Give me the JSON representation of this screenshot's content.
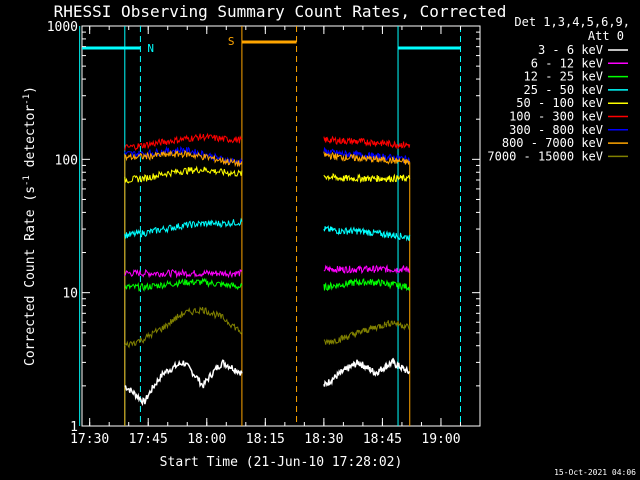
{
  "chart_data": {
    "type": "line",
    "title": "RHESSI Observing Summary Count Rates, Corrected",
    "xlabel": "Start Time (21-Jun-10 17:28:02)",
    "ylabel": "Corrected Count Rate (s⁻¹ detector⁻¹)",
    "ylabel_main": "Corrected Count Rate (s",
    "ylabel_sup1": "-1",
    "ylabel_mid": " detector",
    "ylabel_sup2": "-1",
    "ylabel_end": ")",
    "y_scale": "log",
    "ylim": [
      1,
      1000
    ],
    "xlim": [
      "17:28:02",
      "19:10:00"
    ],
    "x_ticks": [
      "17:30",
      "17:45",
      "18:00",
      "18:15",
      "18:30",
      "18:45",
      "19:00"
    ],
    "y_ticks": [
      "1",
      "10",
      "100",
      "1000"
    ],
    "legend": {
      "title_line1": "Det 1,3,4,5,6,9,",
      "title_line2": "Att 0",
      "placement": "right"
    },
    "series": [
      {
        "name": "3 - 6 keV",
        "color": "#ffffff",
        "segments": [
          {
            "start": "17:39",
            "end": "18:09",
            "values": [
              2,
              1.5,
              2.5,
              3,
              2,
              3,
              2.5
            ]
          },
          {
            "start": "18:30",
            "end": "18:52",
            "values": [
              2,
              2.5,
              3,
              2.5,
              3,
              2.5
            ]
          }
        ]
      },
      {
        "name": "6 - 12 keV",
        "color": "#ff00ff",
        "segments": [
          {
            "start": "17:39",
            "end": "18:09",
            "values": [
              14,
              14,
              14,
              14,
              14,
              14,
              14
            ]
          },
          {
            "start": "18:30",
            "end": "18:52",
            "values": [
              15,
              15,
              15,
              15,
              15,
              15
            ]
          }
        ]
      },
      {
        "name": "12 - 25 keV",
        "color": "#00ff00",
        "segments": [
          {
            "start": "17:39",
            "end": "18:09",
            "values": [
              11,
              11,
              11.5,
              12,
              12,
              11.5,
              11
            ]
          },
          {
            "start": "18:30",
            "end": "18:52",
            "values": [
              11,
              11.5,
              12,
              12,
              11.5,
              11
            ]
          }
        ]
      },
      {
        "name": "25 - 50 keV",
        "color": "#00ffff",
        "segments": [
          {
            "start": "17:39",
            "end": "18:09",
            "values": [
              27,
              28,
              30,
              32,
              33,
              33,
              34
            ]
          },
          {
            "start": "18:30",
            "end": "18:52",
            "values": [
              30,
              29,
              29,
              28,
              27,
              26
            ]
          }
        ]
      },
      {
        "name": "50 - 100 keV",
        "color": "#ffff00",
        "segments": [
          {
            "start": "17:39",
            "end": "18:09",
            "values": [
              70,
              72,
              78,
              82,
              84,
              80,
              78
            ]
          },
          {
            "start": "18:30",
            "end": "18:52",
            "values": [
              75,
              72,
              72,
              72,
              72,
              72
            ]
          }
        ]
      },
      {
        "name": "100 - 300 keV",
        "color": "#ff0000",
        "segments": [
          {
            "start": "17:39",
            "end": "18:09",
            "values": [
              122,
              128,
              135,
              142,
              148,
              142,
              140
            ]
          },
          {
            "start": "18:30",
            "end": "18:52",
            "values": [
              140,
              138,
              136,
              134,
              130,
              128
            ]
          }
        ]
      },
      {
        "name": "300 - 800 keV",
        "color": "#0000ff",
        "segments": [
          {
            "start": "17:39",
            "end": "18:09",
            "values": [
              110,
              110,
              115,
              118,
              110,
              100,
              95
            ]
          },
          {
            "start": "18:30",
            "end": "18:52",
            "values": [
              115,
              110,
              108,
              105,
              103,
              100
            ]
          }
        ]
      },
      {
        "name": "800 - 7000 keV",
        "color": "#ffa500",
        "segments": [
          {
            "start": "17:39",
            "end": "18:09",
            "values": [
              103,
              105,
              108,
              110,
              105,
              98,
              92
            ]
          },
          {
            "start": "18:30",
            "end": "18:52",
            "values": [
              108,
              104,
              102,
              100,
              98,
              95
            ]
          }
        ]
      },
      {
        "name": "7000 - 15000 keV",
        "color": "#808000",
        "segments": [
          {
            "start": "17:39",
            "end": "18:09",
            "values": [
              4,
              4.5,
              5.5,
              7,
              7.5,
              6.5,
              5
            ]
          },
          {
            "start": "18:30",
            "end": "18:52",
            "values": [
              4.2,
              4.5,
              5,
              5.5,
              6,
              5.5
            ]
          }
        ]
      }
    ],
    "flags": [
      {
        "label": "N",
        "color": "#00ffff"
      },
      {
        "label": "S",
        "color": "#ffa500"
      }
    ],
    "grid": false
  },
  "footer": {
    "timestamp": "15-Oct-2021 04:06"
  }
}
